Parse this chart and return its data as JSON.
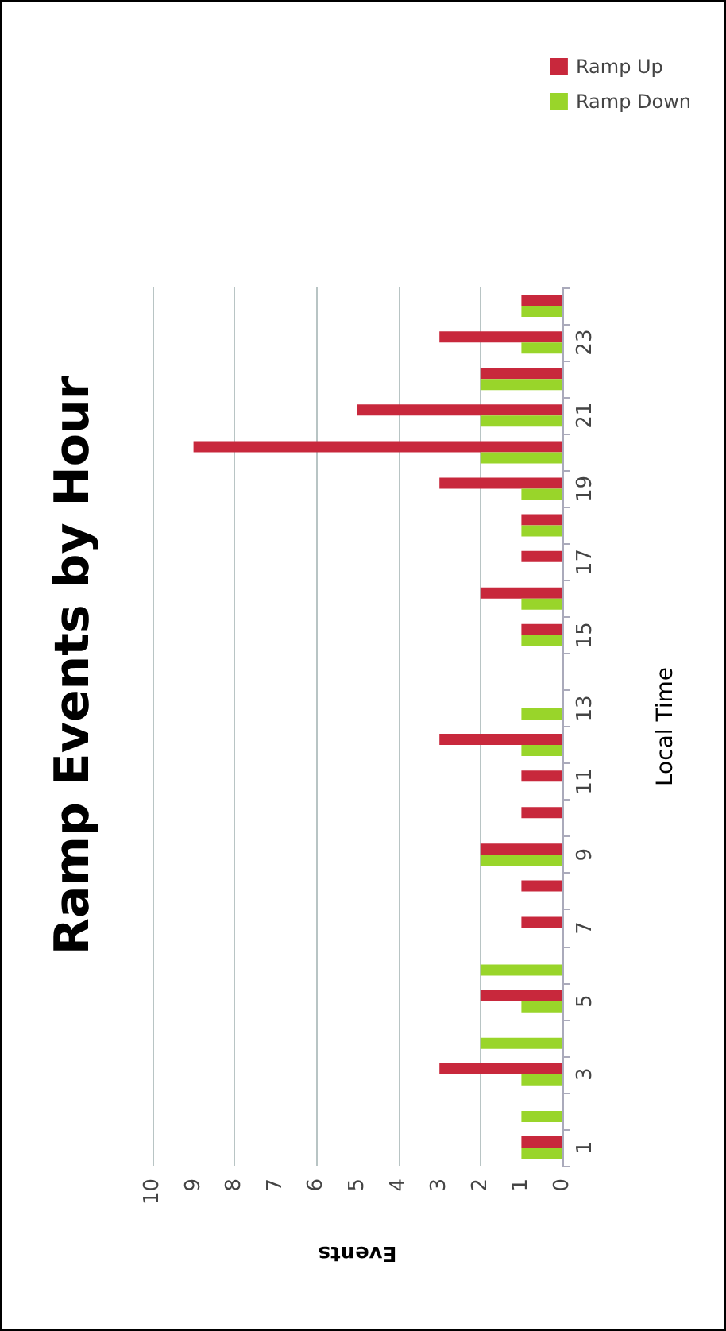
{
  "chart_data": {
    "type": "bar",
    "orientation": "horizontal",
    "title": "Ramp Events by Hour",
    "xlabel": "Events",
    "ylabel": "Local Time",
    "categories": [
      null,
      "23",
      null,
      "21",
      null,
      "19",
      null,
      "17",
      null,
      "15",
      null,
      "13",
      null,
      "11",
      null,
      "9",
      null,
      "7",
      null,
      "5",
      null,
      "3",
      null,
      "1"
    ],
    "series": [
      {
        "name": "Ramp Up",
        "color": "#c8283c",
        "values": [
          1,
          3,
          2,
          5,
          9,
          3,
          1,
          1,
          2,
          1,
          0,
          0,
          3,
          1,
          1,
          2,
          1,
          1,
          0,
          2,
          0,
          3,
          0,
          1
        ]
      },
      {
        "name": "Ramp Down",
        "color": "#99d52a",
        "values": [
          1,
          1,
          2,
          2,
          2,
          1,
          1,
          0,
          1,
          1,
          0,
          1,
          1,
          0,
          0,
          2,
          0,
          0,
          2,
          1,
          2,
          1,
          1,
          1
        ]
      }
    ],
    "xlim": [
      10,
      0
    ],
    "xticks": [
      0,
      1,
      2,
      3,
      4,
      5,
      6,
      7,
      8,
      9,
      10
    ],
    "grid": "x",
    "legend": "top right"
  }
}
